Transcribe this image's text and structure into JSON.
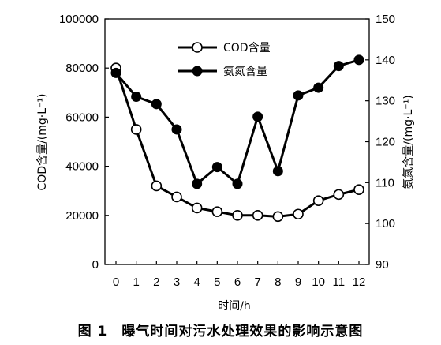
{
  "chart_data": {
    "type": "line",
    "x": [
      0,
      1,
      2,
      3,
      4,
      5,
      6,
      7,
      8,
      9,
      10,
      11,
      12
    ],
    "xlabel": "时间/h",
    "ylabel": "COD含量/(mg·L⁻¹)",
    "ylabel_right": "氨氮含量/(mg·L⁻¹)",
    "ylim": [
      0,
      100000
    ],
    "ylim_right": [
      90,
      150
    ],
    "yticks": [
      0,
      20000,
      40000,
      60000,
      80000,
      100000
    ],
    "yticks_right": [
      90,
      100,
      110,
      120,
      130,
      140,
      150
    ],
    "xlim": [
      0,
      12
    ],
    "grid": false,
    "legend_position": "top-center",
    "series": [
      {
        "name": "COD含量",
        "axis": "left",
        "marker": "open-circle",
        "values": [
          80000,
          55000,
          32000,
          27500,
          23000,
          21500,
          20000,
          20000,
          19500,
          20500,
          26000,
          28500,
          30500
        ]
      },
      {
        "name": "氨氮含量",
        "axis": "right",
        "marker": "filled-circle",
        "values": [
          136.8,
          131.0,
          129.2,
          123.0,
          109.7,
          113.8,
          109.7,
          126.1,
          112.8,
          131.3,
          133.2,
          138.5,
          140.0
        ]
      }
    ]
  },
  "caption": "图 1　曝气时间对污水处理效果的影响示意图",
  "colors": {
    "line": "#000000",
    "open_marker_fill": "#ffffff"
  }
}
